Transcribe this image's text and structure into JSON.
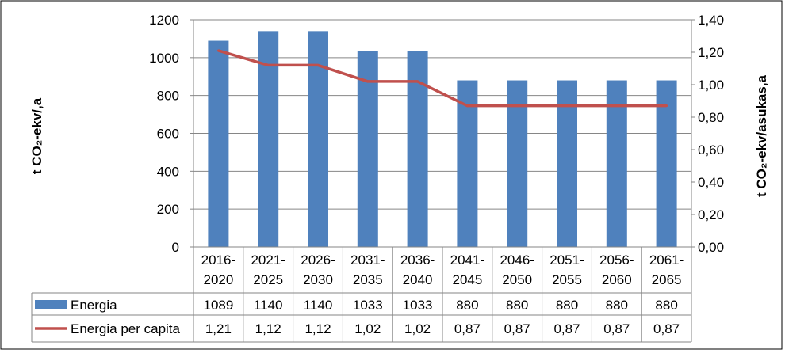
{
  "chart_data": {
    "type": "bar",
    "title": "",
    "categories": [
      [
        "2016-",
        "2020"
      ],
      [
        "2021-",
        "2025"
      ],
      [
        "2026-",
        "2030"
      ],
      [
        "2031-",
        "2035"
      ],
      [
        "2036-",
        "2040"
      ],
      [
        "2041-",
        "2045"
      ],
      [
        "2046-",
        "2050"
      ],
      [
        "2051-",
        "2055"
      ],
      [
        "2056-",
        "2060"
      ],
      [
        "2061-",
        "2065"
      ]
    ],
    "series": [
      {
        "name": "Energia",
        "kind": "bar",
        "axis": "left",
        "color": "#4f81bd",
        "values": [
          1089,
          1140,
          1140,
          1033,
          1033,
          880,
          880,
          880,
          880,
          880
        ],
        "labels": [
          "1089",
          "1140",
          "1140",
          "1033",
          "1033",
          "880",
          "880",
          "880",
          "880",
          "880"
        ]
      },
      {
        "name": "Energia per capita",
        "kind": "line",
        "axis": "right",
        "color": "#c0504d",
        "values": [
          1.21,
          1.12,
          1.12,
          1.02,
          1.02,
          0.87,
          0.87,
          0.87,
          0.87,
          0.87
        ],
        "labels": [
          "1,21",
          "1,12",
          "1,12",
          "1,02",
          "1,02",
          "0,87",
          "0,87",
          "0,87",
          "0,87",
          "0,87"
        ]
      }
    ],
    "y_left": {
      "label": "t CO₂-ekv/,a",
      "ylim": [
        0,
        1200
      ],
      "ticks": [
        0,
        200,
        400,
        600,
        800,
        1000,
        1200
      ],
      "tick_labels": [
        "0",
        "200",
        "400",
        "600",
        "800",
        "1000",
        "1200"
      ]
    },
    "y_right": {
      "label": "t CO₂-ekv/asukas,a",
      "ylim": [
        0,
        1.4
      ],
      "ticks": [
        0,
        0.2,
        0.4,
        0.6,
        0.8,
        1.0,
        1.2,
        1.4
      ],
      "tick_labels": [
        "0,00",
        "0,20",
        "0,40",
        "0,60",
        "0,80",
        "1,00",
        "1,20",
        "1,40"
      ]
    },
    "grid": true,
    "legend": "data-table"
  }
}
